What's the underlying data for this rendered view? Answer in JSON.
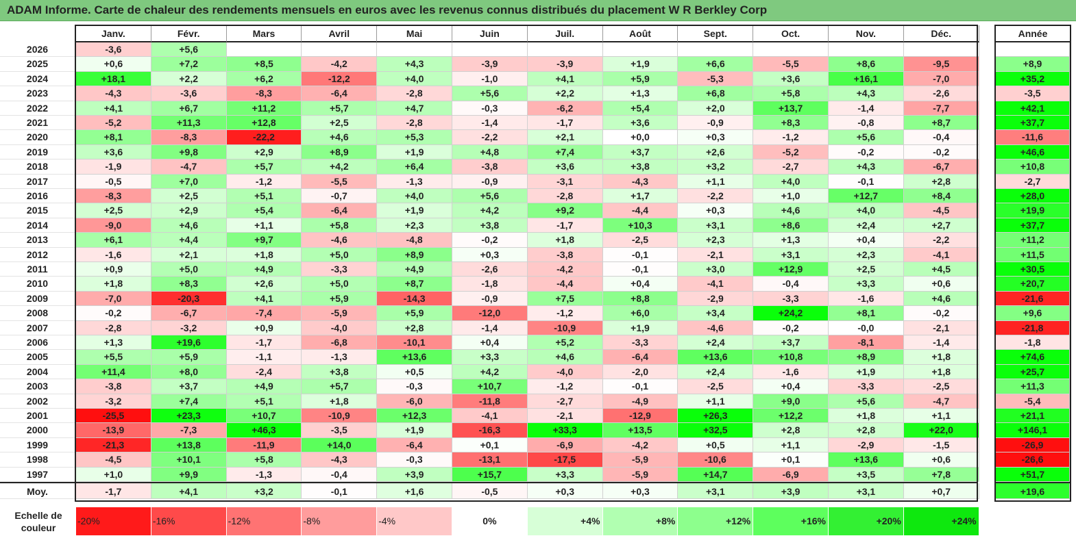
{
  "title": "ADAM Informe. Carte de chaleur des rendements mensuels en euros avec les revenus connus distribués du placement W R Berkley Corp",
  "chart_data": {
    "type": "heatmap",
    "months": [
      "Janv.",
      "Févr.",
      "Mars",
      "Avril",
      "Mai",
      "Juin",
      "Juil.",
      "Août",
      "Sept.",
      "Oct.",
      "Nov.",
      "Déc."
    ],
    "year_column_label": "Année",
    "rows": [
      {
        "year": "2026",
        "values": [
          "-3,6",
          "+5,6",
          "",
          "",
          "",
          "",
          "",
          "",
          "",
          "",
          "",
          ""
        ],
        "annual": ""
      },
      {
        "year": "2025",
        "values": [
          "+0,6",
          "+7,2",
          "+8,5",
          "-4,2",
          "+4,3",
          "-3,9",
          "-3,9",
          "+1,9",
          "+6,6",
          "-5,5",
          "+8,6",
          "-9,5"
        ],
        "annual": "+8,9"
      },
      {
        "year": "2024",
        "values": [
          "+18,1",
          "+2,2",
          "+6,2",
          "-12,2",
          "+4,0",
          "-1,0",
          "+4,1",
          "+5,9",
          "-5,3",
          "+3,6",
          "+16,1",
          "-7,0"
        ],
        "annual": "+35,2"
      },
      {
        "year": "2023",
        "values": [
          "-4,3",
          "-3,6",
          "-8,3",
          "-6,4",
          "-2,8",
          "+5,6",
          "+2,2",
          "+1,3",
          "+6,8",
          "+5,8",
          "+4,3",
          "-2,6"
        ],
        "annual": "-3,5"
      },
      {
        "year": "2022",
        "values": [
          "+4,1",
          "+6,7",
          "+11,2",
          "+5,7",
          "+4,7",
          "-0,3",
          "-6,2",
          "+5,4",
          "+2,0",
          "+13,7",
          "-1,4",
          "-7,7"
        ],
        "annual": "+42,1"
      },
      {
        "year": "2021",
        "values": [
          "-5,2",
          "+11,3",
          "+12,8",
          "+2,5",
          "-2,8",
          "-1,4",
          "-1,7",
          "+3,6",
          "-0,9",
          "+8,3",
          "-0,8",
          "+8,7"
        ],
        "annual": "+37,7"
      },
      {
        "year": "2020",
        "values": [
          "+8,1",
          "-8,3",
          "-22,2",
          "+4,6",
          "+5,3",
          "-2,2",
          "+2,1",
          "+0,0",
          "+0,3",
          "-1,2",
          "+5,6",
          "-0,4"
        ],
        "annual": "-11,6"
      },
      {
        "year": "2019",
        "values": [
          "+3,6",
          "+9,8",
          "+2,9",
          "+8,9",
          "+1,9",
          "+4,8",
          "+7,4",
          "+3,7",
          "+2,6",
          "-5,2",
          "-0,2",
          "-0,2"
        ],
        "annual": "+46,6"
      },
      {
        "year": "2018",
        "values": [
          "-1,9",
          "-4,7",
          "+5,7",
          "+4,2",
          "+6,4",
          "-3,8",
          "+3,6",
          "+3,8",
          "+3,2",
          "-2,7",
          "+4,3",
          "-6,7"
        ],
        "annual": "+10,8"
      },
      {
        "year": "2017",
        "values": [
          "-0,5",
          "+7,0",
          "-1,2",
          "-5,5",
          "-1,3",
          "-0,9",
          "-3,1",
          "-4,3",
          "+1,1",
          "+4,0",
          "-0,1",
          "+2,8"
        ],
        "annual": "-2,7"
      },
      {
        "year": "2016",
        "values": [
          "-8,3",
          "+2,5",
          "+5,1",
          "-0,7",
          "+4,0",
          "+5,6",
          "-2,8",
          "+1,7",
          "-2,2",
          "+1,0",
          "+12,7",
          "+8,4"
        ],
        "annual": "+28,0"
      },
      {
        "year": "2015",
        "values": [
          "+2,5",
          "+2,9",
          "+5,4",
          "-6,4",
          "+1,9",
          "+4,2",
          "+9,2",
          "-4,4",
          "+0,3",
          "+4,6",
          "+4,0",
          "-4,5"
        ],
        "annual": "+19,9"
      },
      {
        "year": "2014",
        "values": [
          "-9,0",
          "+4,6",
          "+1,1",
          "+5,8",
          "+2,3",
          "+3,8",
          "-1,7",
          "+10,3",
          "+3,1",
          "+8,6",
          "+2,4",
          "+2,7"
        ],
        "annual": "+37,7"
      },
      {
        "year": "2013",
        "values": [
          "+6,1",
          "+4,4",
          "+9,7",
          "-4,6",
          "-4,8",
          "-0,2",
          "+1,8",
          "-2,5",
          "+2,3",
          "+1,3",
          "+0,4",
          "-2,2"
        ],
        "annual": "+11,2"
      },
      {
        "year": "2012",
        "values": [
          "-1,6",
          "+2,1",
          "+1,8",
          "+5,0",
          "+8,9",
          "+0,3",
          "-3,8",
          "-0,1",
          "-2,1",
          "+3,1",
          "+2,3",
          "-4,1"
        ],
        "annual": "+11,5"
      },
      {
        "year": "2011",
        "values": [
          "+0,9",
          "+5,0",
          "+4,9",
          "-3,3",
          "+4,9",
          "-2,6",
          "-4,2",
          "-0,1",
          "+3,0",
          "+12,9",
          "+2,5",
          "+4,5"
        ],
        "annual": "+30,5"
      },
      {
        "year": "2010",
        "values": [
          "+1,8",
          "+8,3",
          "+2,6",
          "+5,0",
          "+8,7",
          "-1,8",
          "-4,4",
          "+0,4",
          "-4,1",
          "-0,4",
          "+3,3",
          "+0,6"
        ],
        "annual": "+20,7"
      },
      {
        "year": "2009",
        "values": [
          "-7,0",
          "-20,3",
          "+4,1",
          "+5,9",
          "-14,3",
          "-0,9",
          "+7,5",
          "+8,8",
          "-2,9",
          "-3,3",
          "-1,6",
          "+4,6"
        ],
        "annual": "-21,6"
      },
      {
        "year": "2008",
        "values": [
          "-0,2",
          "-6,7",
          "-7,4",
          "-5,9",
          "+5,9",
          "-12,0",
          "-1,2",
          "+6,0",
          "+3,4",
          "+24,2",
          "+8,1",
          "-0,2"
        ],
        "annual": "+9,6"
      },
      {
        "year": "2007",
        "values": [
          "-2,8",
          "-3,2",
          "+0,9",
          "-4,0",
          "+2,8",
          "-1,4",
          "-10,9",
          "+1,9",
          "-4,6",
          "-0,2",
          "-0,0",
          "-2,1"
        ],
        "annual": "-21,8"
      },
      {
        "year": "2006",
        "values": [
          "+1,3",
          "+19,6",
          "-1,7",
          "-6,8",
          "-10,1",
          "+0,4",
          "+5,2",
          "-3,3",
          "+2,4",
          "+3,7",
          "-8,1",
          "-1,4"
        ],
        "annual": "-1,8"
      },
      {
        "year": "2005",
        "values": [
          "+5,5",
          "+5,9",
          "-1,1",
          "-1,3",
          "+13,6",
          "+3,3",
          "+4,6",
          "-6,4",
          "+13,6",
          "+10,8",
          "+8,9",
          "+1,8"
        ],
        "annual": "+74,6"
      },
      {
        "year": "2004",
        "values": [
          "+11,4",
          "+8,0",
          "-2,4",
          "+3,8",
          "+0,5",
          "+4,2",
          "-4,0",
          "-2,0",
          "+2,4",
          "-1,6",
          "+1,9",
          "+1,8"
        ],
        "annual": "+25,7"
      },
      {
        "year": "2003",
        "values": [
          "-3,8",
          "+3,7",
          "+4,9",
          "+5,7",
          "-0,3",
          "+10,7",
          "-1,2",
          "-0,1",
          "-2,5",
          "+0,4",
          "-3,3",
          "-2,5"
        ],
        "annual": "+11,3"
      },
      {
        "year": "2002",
        "values": [
          "-3,2",
          "+7,4",
          "+5,1",
          "+1,8",
          "-6,0",
          "-11,8",
          "-2,7",
          "-4,9",
          "+1,1",
          "+9,0",
          "+5,6",
          "-4,7"
        ],
        "annual": "-5,4"
      },
      {
        "year": "2001",
        "values": [
          "-25,5",
          "+23,3",
          "+10,7",
          "-10,9",
          "+12,3",
          "-4,1",
          "-2,1",
          "-12,9",
          "+26,3",
          "+12,2",
          "+1,8",
          "+1,1"
        ],
        "annual": "+21,1"
      },
      {
        "year": "2000",
        "values": [
          "-13,9",
          "-7,3",
          "+46,3",
          "-3,5",
          "+1,9",
          "-16,3",
          "+33,3",
          "+13,5",
          "+32,5",
          "+2,8",
          "+2,8",
          "+22,0"
        ],
        "annual": "+146,1"
      },
      {
        "year": "1999",
        "values": [
          "-21,3",
          "+13,8",
          "-11,9",
          "+14,0",
          "-6,4",
          "+0,1",
          "-6,9",
          "-4,2",
          "+0,5",
          "+1,1",
          "-2,9",
          "-1,5"
        ],
        "annual": "-26,9"
      },
      {
        "year": "1998",
        "values": [
          "-4,5",
          "+10,1",
          "+5,8",
          "-4,3",
          "-0,3",
          "-13,1",
          "-17,5",
          "-5,9",
          "-10,6",
          "+0,1",
          "+13,6",
          "+0,6"
        ],
        "annual": "-26,6"
      },
      {
        "year": "1997",
        "values": [
          "+1,0",
          "+9,9",
          "-1,3",
          "-0,4",
          "+3,9",
          "+15,7",
          "+3,3",
          "-5,9",
          "+14,7",
          "-6,9",
          "+3,5",
          "+7,8"
        ],
        "annual": "+51,7"
      }
    ],
    "average": {
      "label": "Moy.",
      "values": [
        "-1,7",
        "+4,1",
        "+3,2",
        "-0,1",
        "+1,6",
        "-0,5",
        "+0,3",
        "+0,3",
        "+3,1",
        "+3,9",
        "+3,1",
        "+0,7"
      ],
      "annual": "+19,6"
    },
    "legend": {
      "label": "Echelle de couleur",
      "steps": [
        {
          "text": "-20%",
          "value": -20,
          "color": "#ff1a1a"
        },
        {
          "text": "-16%",
          "value": -16,
          "color": "#ff4a4a"
        },
        {
          "text": "-12%",
          "value": -12,
          "color": "#ff7373"
        },
        {
          "text": "-8%",
          "value": -8,
          "color": "#ff9c9c"
        },
        {
          "text": "-4%",
          "value": -4,
          "color": "#ffc8c8"
        },
        {
          "text": "0%",
          "value": 0,
          "color": "#ffffff"
        },
        {
          "text": "+4%",
          "value": 4,
          "color": "#d7ffd7"
        },
        {
          "text": "+8%",
          "value": 8,
          "color": "#b1ffb1"
        },
        {
          "text": "+12%",
          "value": 12,
          "color": "#8dff8d"
        },
        {
          "text": "+16%",
          "value": 16,
          "color": "#5dff5d"
        },
        {
          "text": "+20%",
          "value": 20,
          "color": "#33f033"
        },
        {
          "text": "+24%",
          "value": 24,
          "color": "#0ee80e"
        }
      ]
    }
  }
}
